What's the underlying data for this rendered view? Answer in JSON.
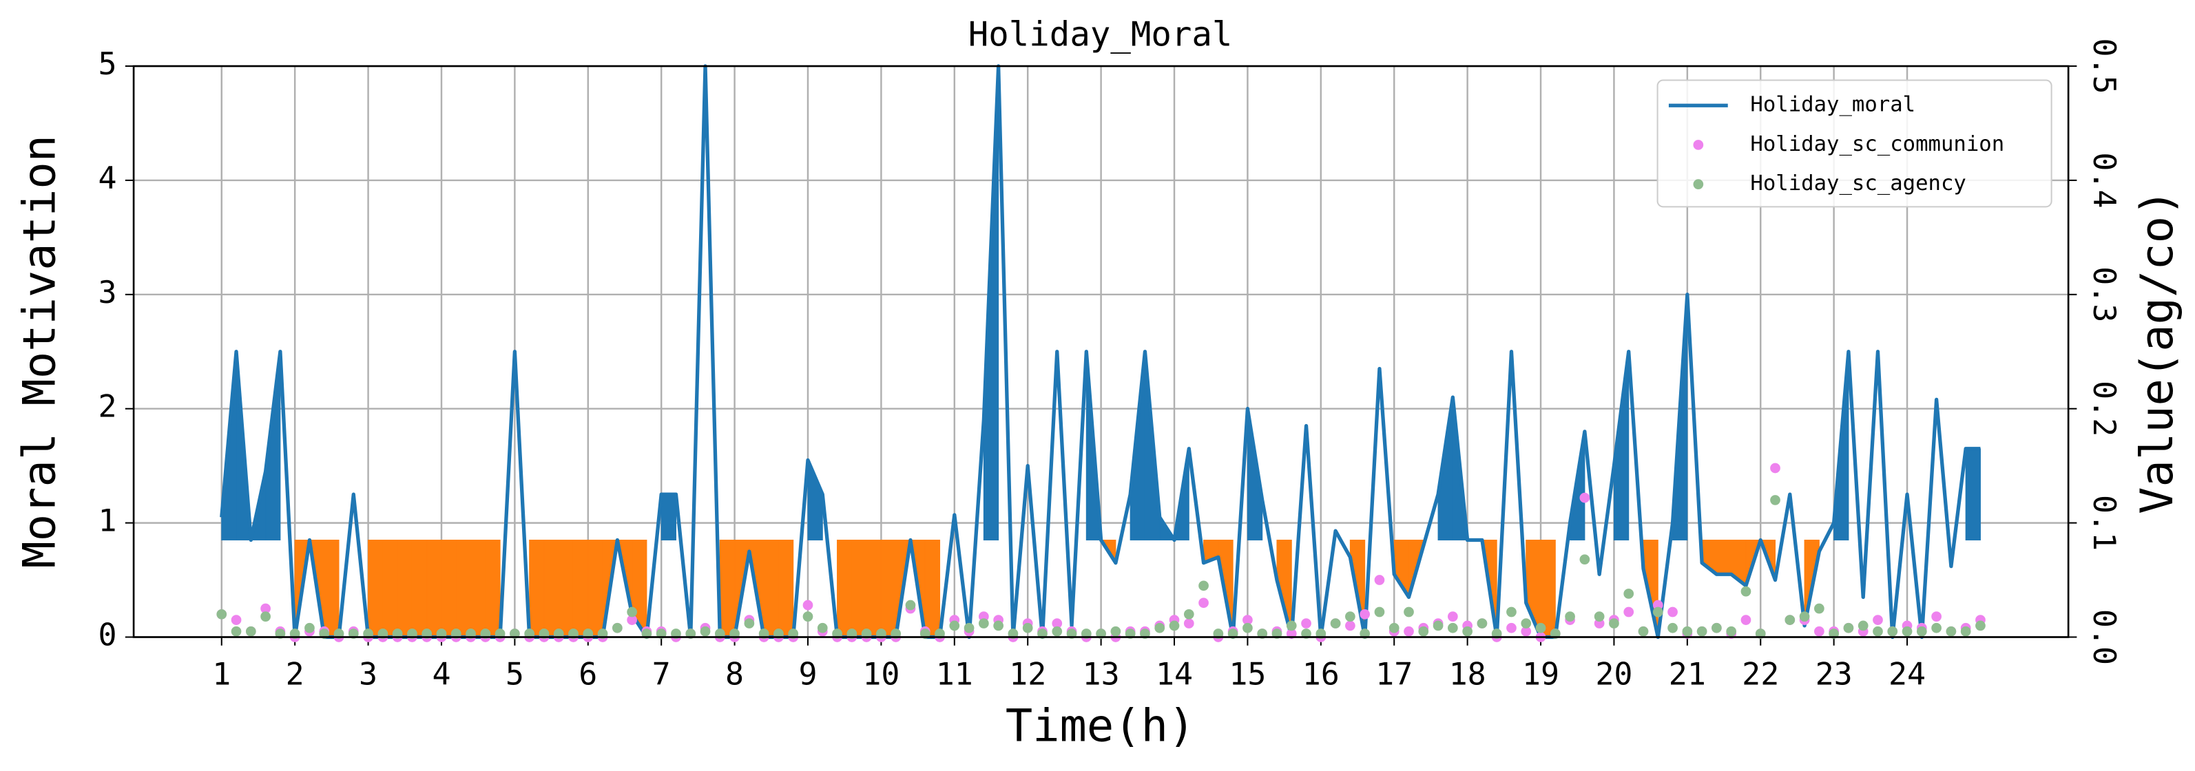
{
  "chart_data": {
    "type": "line",
    "title": "Holiday_Moral",
    "x_label": "Time(h)",
    "y_label": "Moral Motivation",
    "y2_label": "Value(ag/co)",
    "x": [
      1.0,
      1.2,
      1.4,
      1.6,
      1.8,
      2.0,
      2.2,
      2.4,
      2.6,
      2.8,
      3.0,
      3.2,
      3.4,
      3.6,
      3.8,
      4.0,
      4.2,
      4.4,
      4.6,
      4.8,
      5.0,
      5.2,
      5.4,
      5.6,
      5.8,
      6.0,
      6.2,
      6.4,
      6.6,
      6.8,
      7.0,
      7.2,
      7.4,
      7.6,
      7.8,
      8.0,
      8.2,
      8.4,
      8.6,
      8.8,
      9.0,
      9.2,
      9.4,
      9.6,
      9.8,
      10.0,
      10.2,
      10.4,
      10.6,
      10.8,
      11.0,
      11.2,
      11.4,
      11.6,
      11.8,
      12.0,
      12.2,
      12.4,
      12.6,
      12.8,
      13.0,
      13.2,
      13.4,
      13.6,
      13.8,
      14.0,
      14.2,
      14.4,
      14.6,
      14.8,
      15.0,
      15.2,
      15.4,
      15.6,
      15.8,
      16.0,
      16.2,
      16.4,
      16.6,
      16.8,
      17.0,
      17.2,
      17.4,
      17.6,
      17.8,
      18.0,
      18.2,
      18.4,
      18.6,
      18.8,
      19.0,
      19.2,
      19.4,
      19.6,
      19.8,
      20.0,
      20.2,
      20.4,
      20.6,
      20.8,
      21.0,
      21.2,
      21.4,
      21.6,
      21.8,
      22.0,
      22.2,
      22.4,
      22.6,
      22.8,
      23.0,
      23.2,
      23.4,
      23.6,
      23.8,
      24.0,
      24.2,
      24.4,
      24.6,
      24.8,
      25.0
    ],
    "series": [
      {
        "name": "Holiday_moral",
        "type": "line",
        "color": "#1f77b4",
        "values": [
          1.05,
          2.5,
          0.85,
          1.45,
          2.5,
          0,
          0.85,
          0,
          0,
          1.25,
          0,
          0,
          0,
          0,
          0,
          0,
          0,
          0,
          0,
          0,
          2.5,
          0,
          0,
          0,
          0,
          0,
          0,
          0.85,
          0.2,
          0,
          1.25,
          1.25,
          0,
          5,
          0,
          0,
          0.75,
          0,
          0,
          0,
          1.55,
          1.25,
          0,
          0,
          0,
          0,
          0,
          0.85,
          0,
          0,
          1.07,
          0,
          1.9,
          5,
          0,
          1.5,
          0,
          2.5,
          0.1,
          2.5,
          0.85,
          0.65,
          1.25,
          2.5,
          1.05,
          0.85,
          1.65,
          0.65,
          0.7,
          0,
          2.0,
          1.2,
          0.5,
          0,
          1.85,
          0,
          0.93,
          0.7,
          0,
          2.35,
          0.55,
          0.35,
          0.8,
          1.25,
          2.1,
          0.85,
          0.85,
          0,
          2.5,
          0.3,
          0,
          0,
          1.0,
          1.8,
          0.55,
          1.5,
          2.5,
          0.6,
          0,
          1.0,
          3.0,
          0.65,
          0.55,
          0.55,
          0.45,
          0.85,
          0.5,
          1.25,
          0.1,
          0.75,
          1.0,
          2.5,
          0.35,
          2.5,
          0,
          1.25,
          0,
          2.08,
          0.62,
          1.65,
          1.65
        ]
      },
      {
        "name": "Holiday_sc_communion",
        "type": "scatter",
        "axis": "y2",
        "color": "#ee82ee",
        "values": [
          0.02,
          0.015,
          0.005,
          0.025,
          0.005,
          0.0,
          0.005,
          0.005,
          0.0,
          0.005,
          0.0,
          0.0,
          0.0,
          0.0,
          0.0,
          0.0,
          0.0,
          0.0,
          0.0,
          0.0,
          0.003,
          0.0,
          0.0,
          0.0,
          0.0,
          0.0,
          0.0,
          0.008,
          0.015,
          0.005,
          0.005,
          0.0,
          0.003,
          0.008,
          0.0,
          0.0,
          0.015,
          0.0,
          0.0,
          0.0,
          0.028,
          0.005,
          0.0,
          0.0,
          0.0,
          0.0,
          0.0,
          0.025,
          0.005,
          0.0,
          0.015,
          0.005,
          0.018,
          0.015,
          0.0,
          0.012,
          0.005,
          0.012,
          0.005,
          0.0,
          0.003,
          0.0,
          0.005,
          0.005,
          0.01,
          0.015,
          0.012,
          0.03,
          0.0,
          0.005,
          0.015,
          0.003,
          0.005,
          0.003,
          0.012,
          0.0,
          0.012,
          0.01,
          0.02,
          0.05,
          0.005,
          0.005,
          0.008,
          0.012,
          0.018,
          0.01,
          0.012,
          0.0,
          0.008,
          0.005,
          0.0,
          0.003,
          0.015,
          0.122,
          0.012,
          0.015,
          0.022,
          0.005,
          0.028,
          0.022,
          0.003,
          0.005,
          0.008,
          0.003,
          0.015,
          0.003,
          0.148,
          0.015,
          0.015,
          0.005,
          0.005,
          0.008,
          0.005,
          0.015,
          0.005,
          0.01,
          0.008,
          0.018,
          0.005,
          0.008,
          0.015
        ]
      },
      {
        "name": "Holiday_sc_agency",
        "type": "scatter",
        "axis": "y2",
        "color": "#8fbc8f",
        "values": [
          0.02,
          0.005,
          0.005,
          0.018,
          0.003,
          0.003,
          0.008,
          0.003,
          0.003,
          0.003,
          0.003,
          0.003,
          0.003,
          0.003,
          0.003,
          0.003,
          0.003,
          0.003,
          0.003,
          0.003,
          0.003,
          0.003,
          0.003,
          0.003,
          0.003,
          0.003,
          0.003,
          0.008,
          0.022,
          0.003,
          0.003,
          0.003,
          0.003,
          0.005,
          0.003,
          0.003,
          0.012,
          0.003,
          0.003,
          0.003,
          0.018,
          0.008,
          0.003,
          0.003,
          0.003,
          0.003,
          0.003,
          0.028,
          0.003,
          0.003,
          0.01,
          0.008,
          0.012,
          0.01,
          0.003,
          0.008,
          0.003,
          0.005,
          0.003,
          0.003,
          0.003,
          0.005,
          0.003,
          0.003,
          0.008,
          0.01,
          0.02,
          0.045,
          0.003,
          0.003,
          0.008,
          0.003,
          0.003,
          0.01,
          0.003,
          0.003,
          0.012,
          0.018,
          0.003,
          0.022,
          0.008,
          0.022,
          0.005,
          0.01,
          0.008,
          0.005,
          0.012,
          0.003,
          0.022,
          0.012,
          0.008,
          0.003,
          0.018,
          0.068,
          0.018,
          0.012,
          0.038,
          0.005,
          0.022,
          0.008,
          0.005,
          0.005,
          0.008,
          0.005,
          0.04,
          0.003,
          0.12,
          0.015,
          0.018,
          0.025,
          0.003,
          0.008,
          0.01,
          0.005,
          0.005,
          0.005,
          0.005,
          0.008,
          0.005,
          0.005,
          0.01
        ]
      }
    ],
    "fill_level": 0.85,
    "fill_colors": {
      "above": "#1f77b4",
      "below": "#ff7f0e"
    },
    "xlim": [
      -0.2,
      26.2
    ],
    "xticks": [
      1,
      2,
      3,
      4,
      5,
      6,
      7,
      8,
      9,
      10,
      11,
      12,
      13,
      14,
      15,
      16,
      17,
      18,
      19,
      20,
      21,
      22,
      23,
      24
    ],
    "ylim": [
      0,
      5
    ],
    "yticks": [
      0,
      1,
      2,
      3,
      4,
      5
    ],
    "y2lim": [
      0,
      0.5
    ],
    "y2ticks": [
      {
        "value": 0,
        "label": "0.0"
      },
      0.1,
      0.2,
      0.3,
      0.4,
      0.5
    ],
    "grid": true,
    "legend": "upper right"
  }
}
